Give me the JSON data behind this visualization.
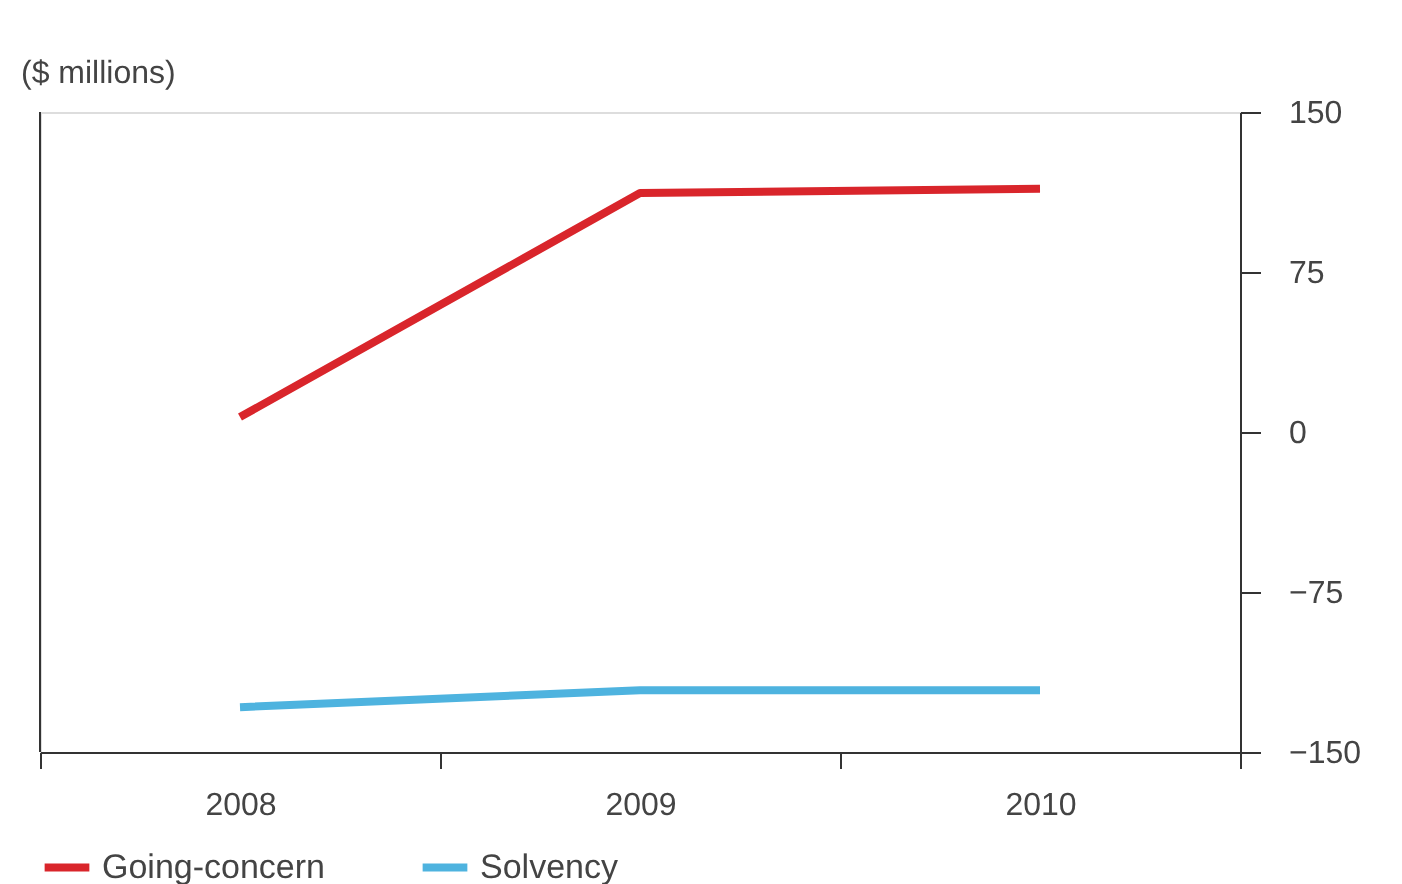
{
  "chart_data": {
    "type": "line",
    "ylabel": "($ millions)",
    "categories": [
      "2008",
      "2009",
      "2010"
    ],
    "series": [
      {
        "name": "Going-concern",
        "color": "#d9252b",
        "values": [
          7,
          112,
          114
        ]
      },
      {
        "name": "Solvency",
        "color": "#4eb3df",
        "values": [
          -129,
          -121,
          -121
        ]
      }
    ],
    "ylim": [
      -150,
      150
    ],
    "yticks": [
      -150,
      -75,
      0,
      75,
      150
    ],
    "grid": false,
    "legend": "bottom left",
    "marker": "none",
    "line_style": "solid"
  }
}
